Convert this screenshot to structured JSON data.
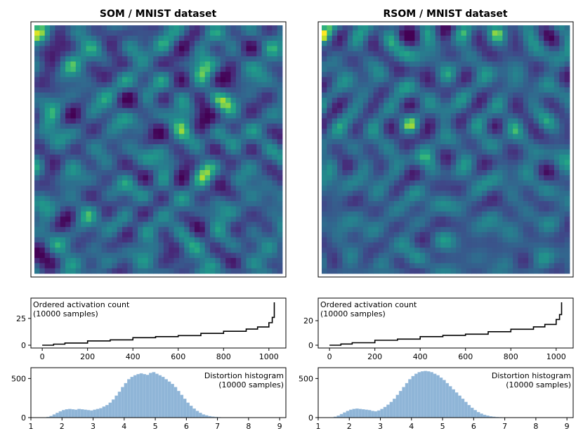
{
  "chart_data": [
    {
      "type": "heatmap",
      "title": "SOM / MNIST dataset",
      "grid": false,
      "colormap": "viridis",
      "description_values": "32x32 map of prototype distances; dark purple = low, yellow = high"
    },
    {
      "type": "heatmap",
      "title": "RSOM / MNIST dataset",
      "grid": false,
      "colormap": "viridis"
    },
    {
      "type": "line",
      "annotation": [
        "Ordered activation count",
        "(10000 samples)"
      ],
      "x_ticks": [
        0,
        200,
        400,
        600,
        800,
        1000
      ],
      "y_ticks": [
        0,
        25
      ],
      "xlim": [
        -50,
        1075
      ],
      "ylim": [
        0,
        40
      ],
      "x": [
        0,
        50,
        100,
        200,
        300,
        400,
        500,
        600,
        700,
        800,
        900,
        950,
        1000,
        1015,
        1024
      ],
      "series": [
        {
          "values": [
            0,
            1,
            2,
            4,
            5,
            7,
            8,
            9,
            11,
            13,
            15,
            17,
            21,
            26,
            40
          ]
        }
      ]
    },
    {
      "type": "line",
      "annotation": [
        "Ordered activation count",
        "(10000 samples)"
      ],
      "x_ticks": [
        0,
        200,
        400,
        600,
        800,
        1000
      ],
      "y_ticks": [
        0,
        20
      ],
      "xlim": [
        -50,
        1075
      ],
      "ylim": [
        0,
        35
      ],
      "x": [
        0,
        50,
        100,
        200,
        300,
        400,
        500,
        600,
        700,
        800,
        900,
        950,
        1000,
        1015,
        1024
      ],
      "series": [
        {
          "values": [
            0,
            1,
            2,
            4,
            5,
            7,
            8,
            9,
            11,
            13,
            15,
            17,
            21,
            25,
            35
          ]
        }
      ]
    },
    {
      "type": "bar",
      "annotation": [
        "Distortion histogram",
        "(10000 samples)"
      ],
      "x_ticks": [
        1,
        2,
        3,
        4,
        5,
        6,
        7,
        8,
        9
      ],
      "y_ticks": [
        0,
        500
      ],
      "xlim": [
        1,
        9.2
      ],
      "ylim": [
        0,
        620
      ],
      "bin_width": 0.1,
      "bin_start": 1.5,
      "values": [
        8,
        20,
        40,
        60,
        80,
        95,
        105,
        110,
        105,
        100,
        110,
        105,
        100,
        95,
        90,
        100,
        110,
        120,
        140,
        160,
        190,
        230,
        280,
        330,
        390,
        440,
        490,
        520,
        540,
        555,
        565,
        555,
        545,
        570,
        580,
        560,
        540,
        520,
        490,
        460,
        430,
        390,
        340,
        290,
        240,
        190,
        150,
        115,
        85,
        60,
        40,
        28,
        18,
        12,
        8,
        5
      ]
    },
    {
      "type": "bar",
      "annotation": [
        "Distortion histogram",
        "(10000 samples)"
      ],
      "x_ticks": [
        1,
        2,
        3,
        4,
        5,
        6,
        7,
        8,
        9
      ],
      "y_ticks": [
        0,
        500
      ],
      "xlim": [
        1,
        9.2
      ],
      "ylim": [
        0,
        620
      ],
      "bin_width": 0.1,
      "bin_start": 1.5,
      "values": [
        10,
        25,
        45,
        65,
        85,
        100,
        110,
        115,
        110,
        105,
        100,
        95,
        85,
        80,
        90,
        110,
        135,
        165,
        200,
        240,
        290,
        340,
        390,
        440,
        490,
        530,
        560,
        580,
        590,
        595,
        590,
        580,
        560,
        540,
        510,
        480,
        440,
        400,
        360,
        320,
        280,
        240,
        200,
        160,
        125,
        95,
        70,
        50,
        35,
        25,
        16,
        10,
        6,
        4
      ]
    }
  ]
}
